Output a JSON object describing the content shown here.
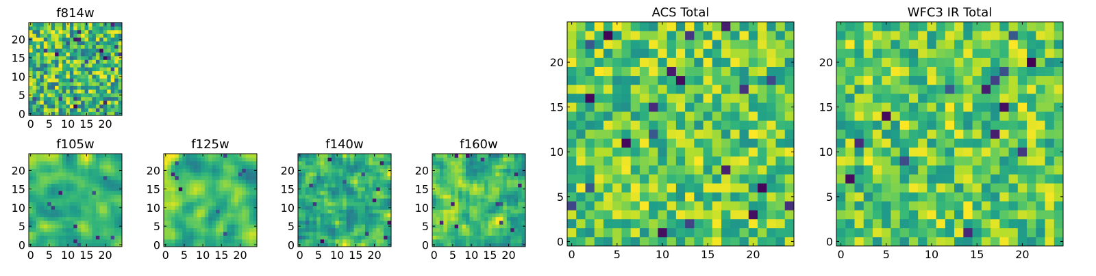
{
  "figure": {
    "colormap": "viridis",
    "colormap_stops": [
      "#440154",
      "#482878",
      "#3e4989",
      "#31688e",
      "#26828e",
      "#1f9e89",
      "#35b779",
      "#6ece58",
      "#b5de2b",
      "#fde725"
    ],
    "spine_color": "#000000"
  },
  "chart_data": [
    {
      "type": "heatmap",
      "id": "f814w",
      "title": "f814w",
      "grid_size": 25,
      "xlim": [
        0,
        24
      ],
      "ylim": [
        0,
        24
      ],
      "xticks": [
        0,
        5,
        10,
        15,
        20
      ],
      "yticks": [
        0,
        5,
        10,
        15,
        20
      ],
      "seed": 11,
      "smooth": 0,
      "value_range": [
        0.35,
        1.0
      ],
      "dark_cells": 22
    },
    {
      "type": "heatmap",
      "id": "f105w",
      "title": "f105w",
      "grid_size": 25,
      "xlim": [
        0,
        24
      ],
      "ylim": [
        0,
        24
      ],
      "xticks": [
        0,
        5,
        10,
        15,
        20
      ],
      "yticks": [
        0,
        5,
        10,
        15,
        20
      ],
      "seed": 23,
      "smooth": 2,
      "value_range": [
        0.45,
        1.0
      ],
      "dark_cells": 10
    },
    {
      "type": "heatmap",
      "id": "f125w",
      "title": "f125w",
      "grid_size": 25,
      "xlim": [
        0,
        24
      ],
      "ylim": [
        0,
        24
      ],
      "xticks": [
        0,
        5,
        10,
        15,
        20
      ],
      "yticks": [
        0,
        5,
        10,
        15,
        20
      ],
      "seed": 37,
      "smooth": 2,
      "value_range": [
        0.4,
        1.0
      ],
      "dark_cells": 9
    },
    {
      "type": "heatmap",
      "id": "f140w",
      "title": "f140w",
      "grid_size": 25,
      "xlim": [
        0,
        24
      ],
      "ylim": [
        0,
        24
      ],
      "xticks": [
        0,
        5,
        10,
        15,
        20
      ],
      "yticks": [
        0,
        5,
        10,
        15,
        20
      ],
      "seed": 41,
      "smooth": 1,
      "value_range": [
        0.35,
        1.0
      ],
      "dark_cells": 12
    },
    {
      "type": "heatmap",
      "id": "f160w",
      "title": "f160w",
      "grid_size": 25,
      "xlim": [
        0,
        24
      ],
      "ylim": [
        0,
        24
      ],
      "xticks": [
        0,
        5,
        10,
        15,
        20
      ],
      "yticks": [
        0,
        5,
        10,
        15,
        20
      ],
      "seed": 53,
      "smooth": 1,
      "value_range": [
        0.35,
        1.0
      ],
      "dark_cells": 12
    },
    {
      "type": "heatmap",
      "id": "acs-total",
      "title": "ACS Total",
      "grid_size": 25,
      "xlim": [
        0,
        24
      ],
      "ylim": [
        0,
        24
      ],
      "xticks": [
        0,
        5,
        10,
        15,
        20
      ],
      "yticks": [
        0,
        5,
        10,
        15,
        20
      ],
      "seed": 67,
      "smooth": 0,
      "value_range": [
        0.5,
        1.0
      ],
      "dark_cells": 20
    },
    {
      "type": "heatmap",
      "id": "wfc3-ir-total",
      "title": "WFC3 IR Total",
      "grid_size": 25,
      "xlim": [
        0,
        24
      ],
      "ylim": [
        0,
        24
      ],
      "xticks": [
        0,
        5,
        10,
        15,
        20
      ],
      "yticks": [
        0,
        5,
        10,
        15,
        20
      ],
      "seed": 79,
      "smooth": 0,
      "value_range": [
        0.5,
        1.0
      ],
      "dark_cells": 14
    }
  ]
}
